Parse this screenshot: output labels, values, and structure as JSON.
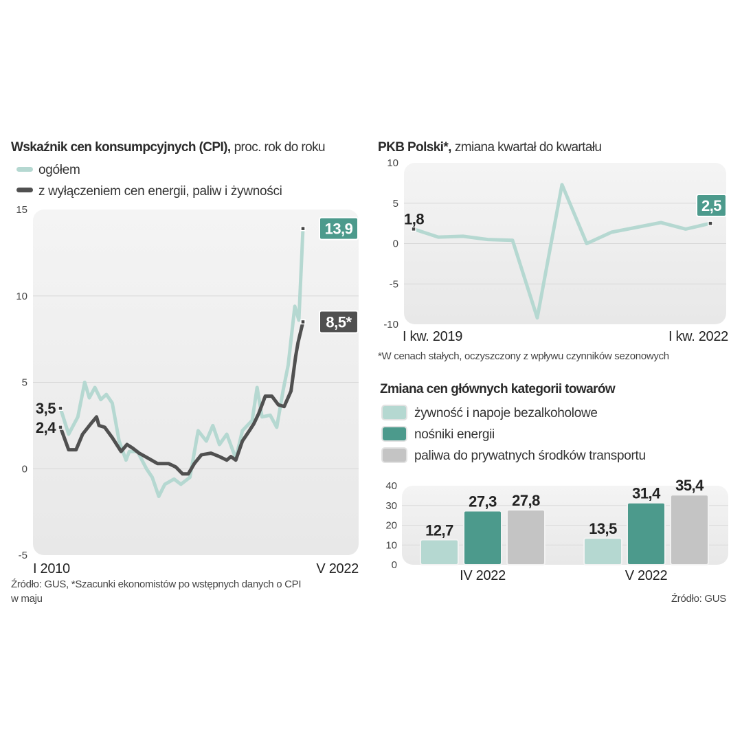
{
  "colors": {
    "light_teal": "#b5d8d1",
    "teal": "#4c9a8c",
    "dark": "#505050",
    "bar_gray": "#c4c4c4",
    "panel": "#ececec"
  },
  "chart_data": [
    {
      "type": "line",
      "title_bold": "Wskaźnik cen konsumpcyjnych (CPI),",
      "title_rest": "proc. rok do roku",
      "x_unit": "months since I 2010",
      "xlim": [
        0,
        148
      ],
      "ylim": [
        -5,
        15
      ],
      "yticks": [
        "15",
        "10",
        "5",
        "0",
        "-5"
      ],
      "ytick_values": [
        15,
        10,
        5,
        0,
        -5
      ],
      "xlabels": {
        "start": "I 2010",
        "end": "V 2022"
      },
      "series": [
        {
          "name": "ogółem",
          "color": "#b5d8d1",
          "start_label": "3,5",
          "end_label": "13,9",
          "points": [
            [
              0,
              3.5
            ],
            [
              5,
              2.0
            ],
            [
              10.6,
              3.0
            ],
            [
              14.8,
              5.0
            ],
            [
              17.6,
              4.1
            ],
            [
              21,
              4.7
            ],
            [
              24.6,
              4.0
            ],
            [
              28,
              4.3
            ],
            [
              31.6,
              3.8
            ],
            [
              35.8,
              1.6
            ],
            [
              40,
              0.5
            ],
            [
              42,
              1.0
            ],
            [
              47,
              1.0
            ],
            [
              52.5,
              0.0
            ],
            [
              56,
              -0.5
            ],
            [
              60,
              -1.6
            ],
            [
              63.7,
              -0.9
            ],
            [
              69.3,
              -0.6
            ],
            [
              73.5,
              -0.9
            ],
            [
              79,
              -0.5
            ],
            [
              84,
              2.2
            ],
            [
              89,
              1.6
            ],
            [
              93,
              2.5
            ],
            [
              97,
              1.4
            ],
            [
              101.5,
              2.0
            ],
            [
              107,
              0.6
            ],
            [
              111,
              2.2
            ],
            [
              117,
              2.8
            ],
            [
              120,
              4.7
            ],
            [
              123,
              3.0
            ],
            [
              128,
              3.1
            ],
            [
              132,
              2.4
            ],
            [
              136,
              4.6
            ],
            [
              139,
              6.0
            ],
            [
              143,
              9.4
            ],
            [
              145.5,
              8.6
            ],
            [
              148,
              13.9
            ]
          ]
        },
        {
          "name": "z wyłączeniem cen energii, paliw i żywności",
          "color": "#505050",
          "start_label": "2,4",
          "end_label": "8,5*",
          "points": [
            [
              0,
              2.4
            ],
            [
              5,
              1.1
            ],
            [
              9.5,
              1.1
            ],
            [
              13.5,
              2.0
            ],
            [
              18.5,
              2.6
            ],
            [
              22,
              3.0
            ],
            [
              23.5,
              2.5
            ],
            [
              27,
              2.4
            ],
            [
              31.6,
              1.8
            ],
            [
              37,
              1.0
            ],
            [
              40.6,
              1.4
            ],
            [
              44,
              1.2
            ],
            [
              48,
              0.9
            ],
            [
              53.7,
              0.6
            ],
            [
              59.2,
              0.3
            ],
            [
              66,
              0.3
            ],
            [
              70.4,
              0.1
            ],
            [
              74.5,
              -0.3
            ],
            [
              78,
              -0.3
            ],
            [
              81.7,
              0.3
            ],
            [
              86,
              0.8
            ],
            [
              91.8,
              0.9
            ],
            [
              97,
              0.7
            ],
            [
              101.5,
              0.5
            ],
            [
              104,
              0.7
            ],
            [
              107,
              0.5
            ],
            [
              111,
              1.6
            ],
            [
              115.3,
              2.2
            ],
            [
              118,
              2.6
            ],
            [
              121,
              3.2
            ],
            [
              125,
              4.2
            ],
            [
              129,
              4.2
            ],
            [
              133,
              3.7
            ],
            [
              136.5,
              3.6
            ],
            [
              140.7,
              4.5
            ],
            [
              143.5,
              6.5
            ],
            [
              145,
              7.3
            ],
            [
              148,
              8.5
            ]
          ]
        }
      ],
      "source": "Źródło: GUS, *Szacunki ekonomistów po wstępnych danych o CPI",
      "source_line2": "w maju"
    },
    {
      "type": "line",
      "title_bold": "PKB Polski*,",
      "title_rest": "zmiana kwartał do kwartału",
      "ylim": [
        -10,
        10
      ],
      "yticks": [
        "10",
        "5",
        "0",
        "-5",
        "-10"
      ],
      "ytick_values": [
        10,
        5,
        0,
        -5,
        -10
      ],
      "xlabels": {
        "start": "I kw. 2019",
        "end": "I kw. 2022"
      },
      "values": [
        1.8,
        0.8,
        0.9,
        0.5,
        0.4,
        -9.2,
        7.3,
        0.0,
        1.4,
        2.0,
        2.6,
        1.8,
        2.5
      ],
      "start_label": "1,8",
      "end_label": "2,5",
      "footnote": "*W cenach stałych, oczyszczony z wpływu czynników sezonowych"
    },
    {
      "type": "bar",
      "title": "Zmiana cen głównych kategorii towarów",
      "categories": [
        "IV 2022",
        "V 2022"
      ],
      "ylim": [
        0,
        40
      ],
      "yticks": [
        "40",
        "30",
        "20",
        "10",
        "0"
      ],
      "ytick_values": [
        40,
        30,
        20,
        10,
        0
      ],
      "series": [
        {
          "name": "żywność i napoje bezalkoholowe",
          "color": "#b5d8d1",
          "values": [
            12.7,
            13.5
          ],
          "labels": [
            "12,7",
            "13,5"
          ]
        },
        {
          "name": "nośniki energii",
          "color": "#4c9a8c",
          "values": [
            27.3,
            31.4
          ],
          "labels": [
            "27,3",
            "31,4"
          ]
        },
        {
          "name": "paliwa do prywatnych środków transportu",
          "color": "#c4c4c4",
          "values": [
            27.8,
            35.4
          ],
          "labels": [
            "27,8",
            "35,4"
          ]
        }
      ],
      "source": "Źródło: GUS"
    }
  ]
}
